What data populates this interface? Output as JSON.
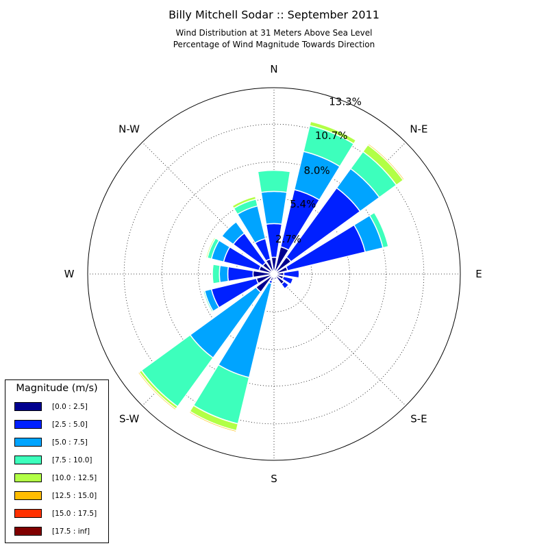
{
  "chart_data": {
    "type": "windrose",
    "title": "Billy Mitchell Sodar :: September 2011",
    "subtitle_lines": [
      "Wind Distribution at 31 Meters Above Sea Level",
      "Percentage of Wind Magnitude Towards Direction"
    ],
    "direction_labels": [
      "N",
      "N-E",
      "E",
      "S-E",
      "S",
      "S-W",
      "W",
      "N-W"
    ],
    "radial_ticks": [
      2.7,
      5.4,
      8.0,
      10.7,
      13.3
    ],
    "radial_tick_labels": [
      "2.7%",
      "5.4%",
      "8.0%",
      "10.7%",
      "13.3%"
    ],
    "r_max": 13.3,
    "bins": [
      "[0.0 : 2.5]",
      "[2.5 : 5.0]",
      "[5.0 : 7.5]",
      "[7.5 : 10.0]",
      "[10.0 : 12.5]",
      "[12.5 : 15.0]",
      "[15.0 : 17.5]",
      "[17.5 : inf]"
    ],
    "bin_colors": [
      "#00008f",
      "#0020ff",
      "#00a4ff",
      "#3dffbc",
      "#b2ff46",
      "#ffbd00",
      "#ff3100",
      "#800000"
    ],
    "sector_directions_deg": [
      0,
      22.5,
      45,
      67.5,
      90,
      112.5,
      135,
      157.5,
      180,
      202.5,
      225,
      247.5,
      270,
      292.5,
      315,
      337.5
    ],
    "sector_cumulative_pct": [
      [
        1.2,
        3.6,
        5.9,
        7.4,
        7.4,
        7.4,
        7.4,
        7.4
      ],
      [
        2.0,
        6.2,
        9.0,
        10.9,
        11.2,
        11.2,
        11.2,
        11.2
      ],
      [
        1.5,
        7.6,
        9.3,
        10.8,
        11.4,
        11.5,
        11.5,
        11.5
      ],
      [
        1.0,
        6.7,
        8.0,
        8.4,
        8.4,
        8.4,
        8.4,
        8.4
      ],
      [
        0.7,
        1.8,
        1.8,
        1.8,
        1.8,
        1.8,
        1.8,
        1.8
      ],
      [
        0.7,
        1.4,
        1.4,
        1.4,
        1.4,
        1.4,
        1.4,
        1.4
      ],
      [
        0.9,
        1.3,
        1.3,
        1.3,
        1.3,
        1.3,
        1.3,
        1.3
      ],
      [
        0.4,
        0.4,
        0.4,
        0.4,
        0.4,
        0.4,
        0.4,
        0.4
      ],
      [
        0.4,
        0.4,
        0.4,
        0.4,
        0.4,
        0.4,
        0.4,
        0.4
      ],
      [
        0.5,
        0.7,
        7.6,
        11.0,
        11.5,
        11.6,
        11.6,
        11.6
      ],
      [
        1.6,
        1.6,
        7.4,
        11.7,
        11.9,
        12.0,
        12.0,
        12.0
      ],
      [
        1.3,
        4.6,
        5.1,
        5.2,
        5.2,
        5.2,
        5.2,
        5.2
      ],
      [
        1.5,
        3.3,
        3.9,
        4.4,
        4.4,
        4.4,
        4.4,
        4.4
      ],
      [
        1.1,
        3.7,
        4.6,
        4.9,
        5.0,
        5.0,
        5.0,
        5.0
      ],
      [
        1.0,
        3.6,
        4.6,
        4.6,
        4.6,
        4.6,
        4.6,
        4.6
      ],
      [
        1.1,
        2.6,
        5.0,
        5.5,
        5.7,
        5.7,
        5.7,
        5.7
      ]
    ],
    "legend_title": "Magnitude (m/s)",
    "legend_position": "bottom-left",
    "grid": true
  }
}
